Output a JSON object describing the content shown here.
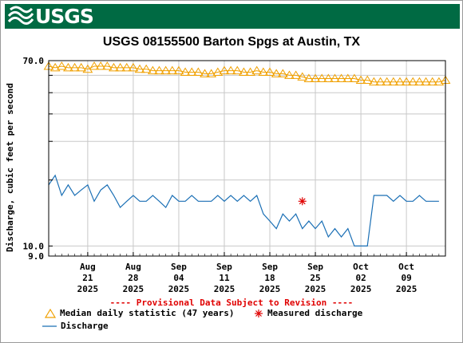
{
  "header": {
    "logo_text": "USGS",
    "banner_color": "#006a43",
    "logo_icon": "usgs-wave-icon"
  },
  "chart_data": {
    "type": "line",
    "title": "USGS 08155500 Barton Spgs at Austin, TX",
    "ylabel": "Discharge, cubic feet per second",
    "xlabel": "",
    "y_scale": "log",
    "ylim": [
      9.0,
      70.0
    ],
    "y_ticks": [
      "70.0",
      "10.0",
      "9.0"
    ],
    "x_ticks": [
      {
        "date": "2025-08-21",
        "month": "Aug",
        "day": "21",
        "year": "2025"
      },
      {
        "date": "2025-08-28",
        "month": "Aug",
        "day": "28",
        "year": "2025"
      },
      {
        "date": "2025-09-04",
        "month": "Sep",
        "day": "04",
        "year": "2025"
      },
      {
        "date": "2025-09-11",
        "month": "Sep",
        "day": "11",
        "year": "2025"
      },
      {
        "date": "2025-09-18",
        "month": "Sep",
        "day": "18",
        "year": "2025"
      },
      {
        "date": "2025-09-25",
        "month": "Sep",
        "day": "25",
        "year": "2025"
      },
      {
        "date": "2025-10-02",
        "month": "Oct",
        "day": "02",
        "year": "2025"
      },
      {
        "date": "2025-10-09",
        "month": "Oct",
        "day": "09",
        "year": "2025"
      }
    ],
    "xlim": [
      "2025-08-15",
      "2025-10-15"
    ],
    "grid": true,
    "disclaimer": "---- Provisional Data Subject to Revision ----",
    "legend": [
      {
        "label": "Median daily statistic (47 years)",
        "marker": "triangle",
        "color": "#f0a000"
      },
      {
        "label": "Measured discharge",
        "marker": "asterisk",
        "color": "#e00000"
      },
      {
        "label": "Discharge",
        "marker": "line",
        "color": "#1a6fb5"
      }
    ],
    "series": [
      {
        "name": "Median daily statistic (47 years)",
        "color": "#f0a000",
        "x": [
          "2025-08-15",
          "2025-08-16",
          "2025-08-17",
          "2025-08-18",
          "2025-08-19",
          "2025-08-20",
          "2025-08-21",
          "2025-08-22",
          "2025-08-23",
          "2025-08-24",
          "2025-08-25",
          "2025-08-26",
          "2025-08-27",
          "2025-08-28",
          "2025-08-29",
          "2025-08-30",
          "2025-08-31",
          "2025-09-01",
          "2025-09-02",
          "2025-09-03",
          "2025-09-04",
          "2025-09-05",
          "2025-09-06",
          "2025-09-07",
          "2025-09-08",
          "2025-09-09",
          "2025-09-10",
          "2025-09-11",
          "2025-09-12",
          "2025-09-13",
          "2025-09-14",
          "2025-09-15",
          "2025-09-16",
          "2025-09-17",
          "2025-09-18",
          "2025-09-19",
          "2025-09-20",
          "2025-09-21",
          "2025-09-22",
          "2025-09-23",
          "2025-09-24",
          "2025-09-25",
          "2025-09-26",
          "2025-09-27",
          "2025-09-28",
          "2025-09-29",
          "2025-09-30",
          "2025-10-01",
          "2025-10-02",
          "2025-10-03",
          "2025-10-04",
          "2025-10-05",
          "2025-10-06",
          "2025-10-07",
          "2025-10-08",
          "2025-10-09",
          "2025-10-10",
          "2025-10-11",
          "2025-10-12",
          "2025-10-13",
          "2025-10-14",
          "2025-10-15"
        ],
        "y": [
          66,
          65,
          66,
          65,
          65,
          65,
          64,
          66,
          66,
          66,
          65,
          65,
          65,
          65,
          64,
          64,
          63,
          63,
          63,
          63,
          63,
          62,
          62,
          62,
          61,
          61,
          62,
          63,
          63,
          63,
          62,
          62,
          63,
          62,
          62,
          61,
          61,
          60,
          60,
          59,
          58,
          58,
          58,
          58,
          58,
          58,
          58,
          58,
          57,
          57,
          56,
          56,
          56,
          56,
          56,
          56,
          56,
          56,
          56,
          56,
          56,
          57
        ]
      },
      {
        "name": "Measured discharge",
        "color": "#e00000",
        "x": [
          "2025-09-23"
        ],
        "y": [
          16.0
        ]
      },
      {
        "name": "Discharge",
        "color": "#1a6fb5",
        "x": [
          "2025-08-15",
          "2025-08-16",
          "2025-08-17",
          "2025-08-18",
          "2025-08-19",
          "2025-08-20",
          "2025-08-21",
          "2025-08-22",
          "2025-08-23",
          "2025-08-24",
          "2025-08-25",
          "2025-08-26",
          "2025-08-27",
          "2025-08-28",
          "2025-08-29",
          "2025-08-30",
          "2025-08-31",
          "2025-09-01",
          "2025-09-02",
          "2025-09-03",
          "2025-09-04",
          "2025-09-05",
          "2025-09-06",
          "2025-09-07",
          "2025-09-08",
          "2025-09-09",
          "2025-09-10",
          "2025-09-11",
          "2025-09-12",
          "2025-09-13",
          "2025-09-14",
          "2025-09-15",
          "2025-09-16",
          "2025-09-17",
          "2025-09-18",
          "2025-09-19",
          "2025-09-20",
          "2025-09-21",
          "2025-09-22",
          "2025-09-23",
          "2025-09-24",
          "2025-09-25",
          "2025-09-26",
          "2025-09-27",
          "2025-09-28",
          "2025-09-29",
          "2025-09-30",
          "2025-10-01",
          "2025-10-02",
          "2025-10-03",
          "2025-10-04",
          "2025-10-05",
          "2025-10-06",
          "2025-10-07",
          "2025-10-08",
          "2025-10-09",
          "2025-10-10",
          "2025-10-11",
          "2025-10-12",
          "2025-10-13",
          "2025-10-14"
        ],
        "y": [
          19,
          21,
          17,
          19,
          17,
          18,
          19,
          16,
          18,
          19,
          17,
          15,
          16,
          17,
          16,
          16,
          17,
          16,
          15,
          17,
          16,
          16,
          17,
          16,
          16,
          16,
          17,
          16,
          17,
          16,
          17,
          16,
          17,
          14,
          13,
          12,
          14,
          13,
          14,
          12,
          13,
          12,
          13,
          11,
          12,
          11,
          12,
          10,
          10,
          10,
          17,
          17,
          17,
          16,
          17,
          16,
          16,
          17,
          16,
          16,
          16
        ]
      }
    ]
  }
}
